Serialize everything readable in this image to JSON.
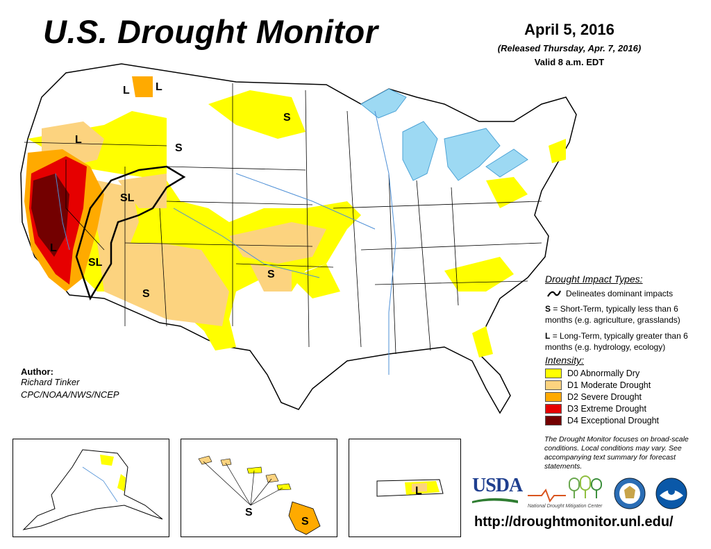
{
  "header": {
    "title": "U.S. Drought Monitor",
    "date": "April 5, 2016",
    "released": "(Released Thursday, Apr. 7, 2016)",
    "valid": "Valid 8 a.m. EDT"
  },
  "impact_legend": {
    "title": "Drought Impact Types:",
    "line_desc": "Delineates dominant impacts",
    "short_term_letter": "S",
    "short_term_desc": "= Short-Term, typically less than 6 months (e.g. agriculture, grasslands)",
    "long_term_letter": "L",
    "long_term_desc": "= Long-Term, typically greater than 6 months (e.g. hydrology, ecology)"
  },
  "intensity_legend": {
    "title": "Intensity:",
    "items": [
      {
        "label": "D0 Abnormally Dry",
        "color": "#ffff00"
      },
      {
        "label": "D1 Moderate Drought",
        "color": "#fcd37f"
      },
      {
        "label": "D2 Severe Drought",
        "color": "#ffaa00"
      },
      {
        "label": "D3 Extreme Drought",
        "color": "#e60000"
      },
      {
        "label": "D4 Exceptional Drought",
        "color": "#730000"
      }
    ]
  },
  "author": {
    "label": "Author:",
    "name": "Richard Tinker",
    "org": "CPC/NOAA/NWS/NCEP"
  },
  "disclaimer": "The Drought Monitor focuses on broad-scale conditions. Local conditions may vary. See accompanying text summary for forecast statements.",
  "map_labels": {
    "wa_l": "L",
    "mt_l": "L",
    "or_l": "L",
    "wy_s": "S",
    "nd_s": "S",
    "ut_sl": "SL",
    "ca_l": "L",
    "az_sl": "SL",
    "nm_s": "S",
    "ok_s": "S",
    "hi_s1": "S",
    "hi_s2": "S",
    "pr_l": "L"
  },
  "logos": {
    "usda": "USDA",
    "ndmc": "National Drought Mitigation Center",
    "doc": "Department of Commerce seal",
    "noaa": "NOAA"
  },
  "url": "http://droughtmonitor.unl.edu/"
}
